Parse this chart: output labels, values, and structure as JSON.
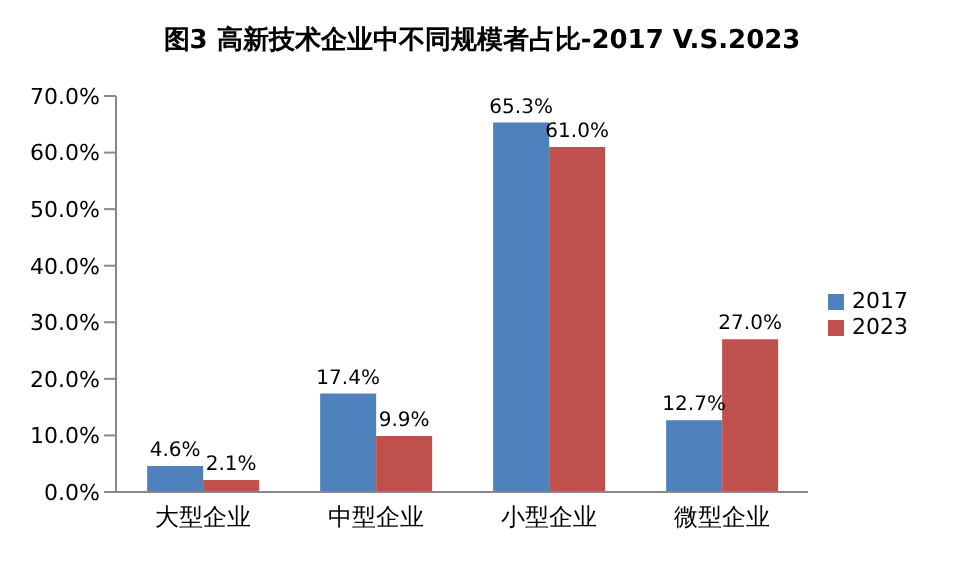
{
  "chart_data": {
    "type": "bar",
    "title": "图3 高新技术企业中不同规模者占比-2017 V.S.2023",
    "categories": [
      "大型企业",
      "中型企业",
      "小型企业",
      "微型企业"
    ],
    "series": [
      {
        "name": "2017",
        "color": "#4f81bd",
        "values": [
          4.6,
          17.4,
          65.3,
          12.7
        ],
        "value_labels": [
          "4.6%",
          "17.4%",
          "65.3%",
          "12.7%"
        ]
      },
      {
        "name": "2023",
        "color": "#c0504d",
        "values": [
          2.1,
          9.9,
          61.0,
          27.0
        ],
        "value_labels": [
          "2.1%",
          "9.9%",
          "61.0%",
          "27.0%"
        ]
      }
    ],
    "ylim": [
      0,
      70
    ],
    "yticks": [
      {
        "value": 0,
        "label": "0.0%"
      },
      {
        "value": 10,
        "label": "10.0%"
      },
      {
        "value": 20,
        "label": "20.0%"
      },
      {
        "value": 30,
        "label": "30.0%"
      },
      {
        "value": 40,
        "label": "40.0%"
      },
      {
        "value": 50,
        "label": "50.0%"
      },
      {
        "value": 60,
        "label": "60.0%"
      },
      {
        "value": 70,
        "label": "70.0%"
      }
    ],
    "legend": "right"
  }
}
